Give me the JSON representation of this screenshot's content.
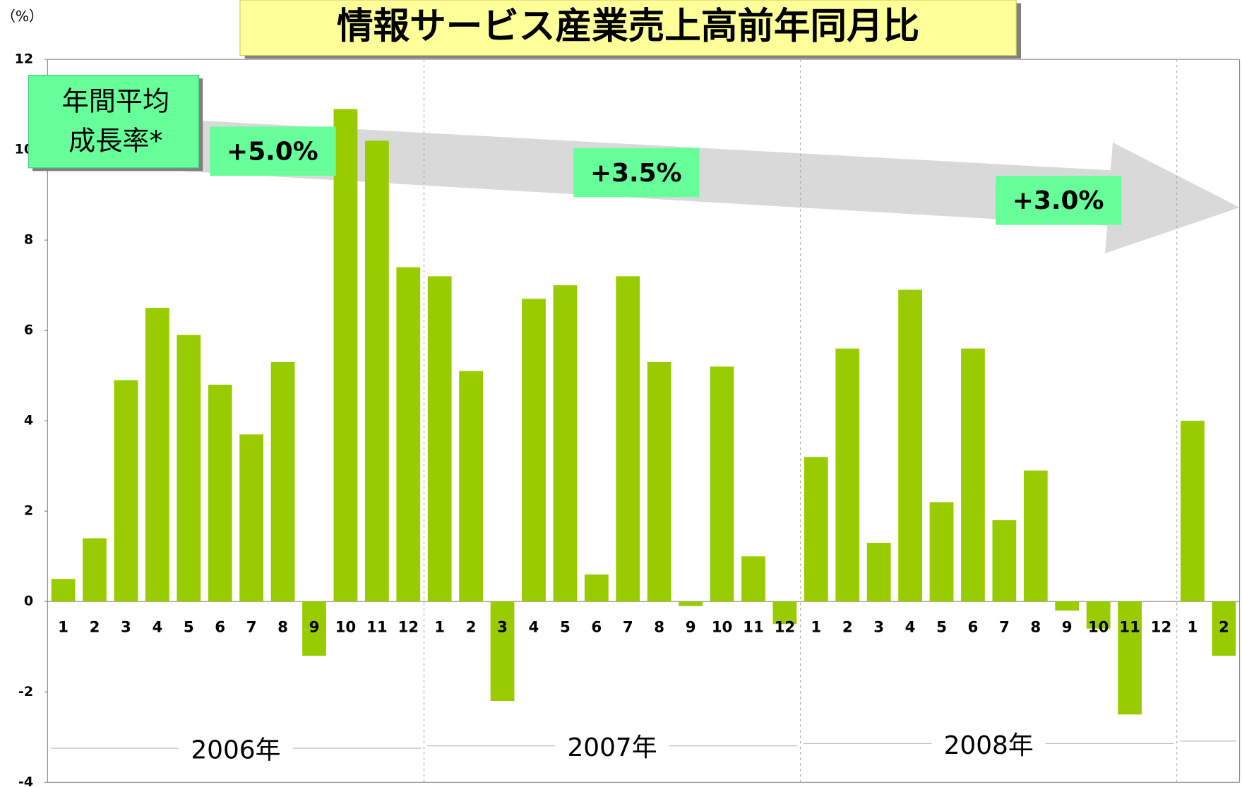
{
  "chart_data": {
    "type": "bar",
    "title": "情報サービス産業売上高前年同月比",
    "y_unit": "（%）",
    "categories": [
      "1",
      "2",
      "3",
      "4",
      "5",
      "6",
      "7",
      "8",
      "9",
      "10",
      "11",
      "12",
      "1",
      "2",
      "3",
      "4",
      "5",
      "6",
      "7",
      "8",
      "9",
      "10",
      "11",
      "12",
      "1",
      "2",
      "3",
      "4",
      "5",
      "6",
      "7",
      "8",
      "9",
      "10",
      "11",
      "12",
      "1",
      "2"
    ],
    "values": [
      0.5,
      1.4,
      4.9,
      6.5,
      5.9,
      4.8,
      3.7,
      5.3,
      -1.2,
      10.9,
      10.2,
      7.4,
      7.2,
      5.1,
      -2.2,
      6.7,
      7.0,
      0.6,
      7.2,
      5.3,
      -0.1,
      5.2,
      1.0,
      -0.5,
      3.2,
      5.6,
      1.3,
      6.9,
      2.2,
      5.6,
      1.8,
      2.9,
      -0.2,
      -0.6,
      -2.5,
      null,
      4.0,
      -1.2
    ],
    "color": "#99cc00",
    "ylim": [
      -4,
      12
    ],
    "yticks": [
      -4,
      -2,
      0,
      2,
      4,
      6,
      8,
      10,
      12
    ],
    "years": [
      "2006年",
      "2007年",
      "2008年"
    ],
    "growth_box": [
      "年間平均",
      "成長率*"
    ],
    "growth_rates": [
      "+5.0%",
      "+3.5%",
      "+3.0%"
    ]
  }
}
